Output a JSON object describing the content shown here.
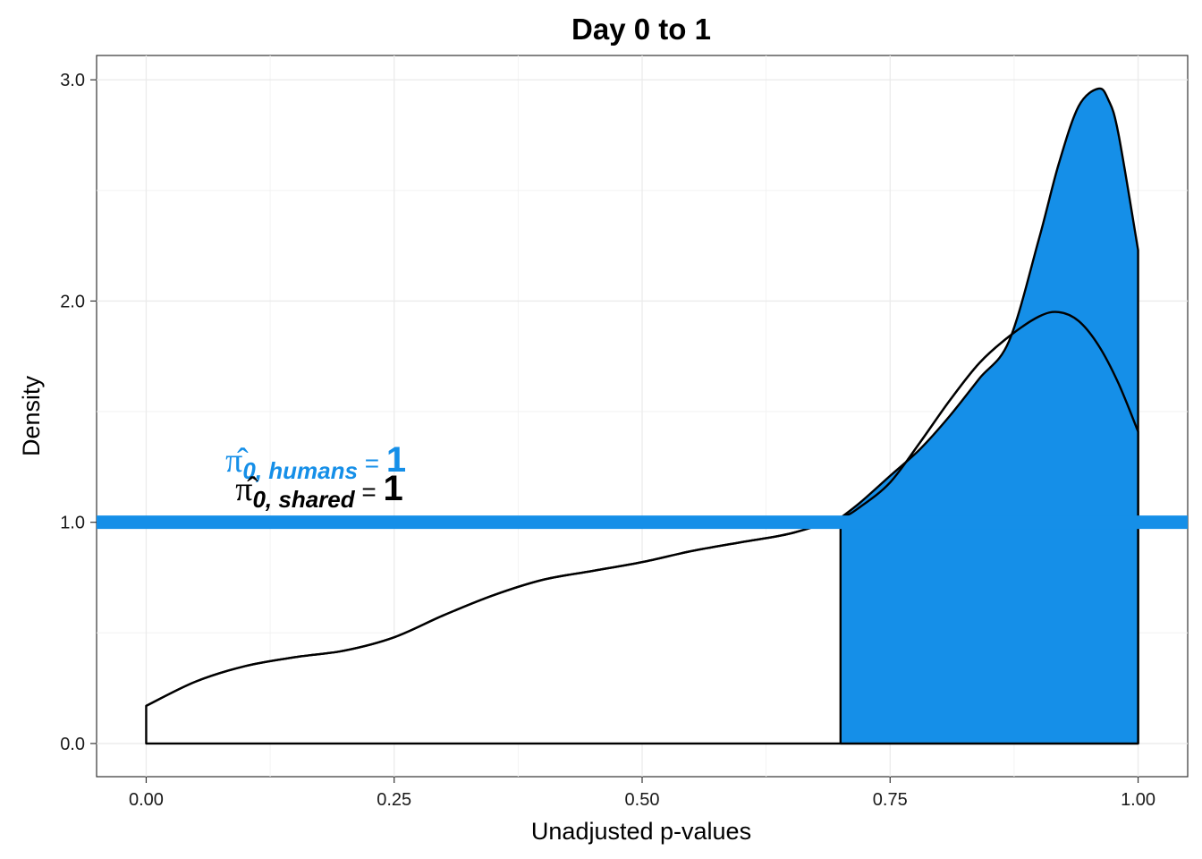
{
  "chart_data": {
    "type": "area",
    "title": "Day 0 to 1",
    "xlabel": "Unadjusted p-values",
    "ylabel": "Density",
    "xlim": [
      -0.05,
      1.05
    ],
    "ylim": [
      -0.15,
      3.11
    ],
    "grid": true,
    "x_ticks": [
      {
        "value": 0.0,
        "label": "0.00"
      },
      {
        "value": 0.25,
        "label": "0.25"
      },
      {
        "value": 0.5,
        "label": "0.50"
      },
      {
        "value": 0.75,
        "label": "0.75"
      },
      {
        "value": 1.0,
        "label": "1.00"
      }
    ],
    "y_ticks": [
      {
        "value": 0,
        "label": "0.0"
      },
      {
        "value": 1,
        "label": "1.0"
      },
      {
        "value": 2,
        "label": "2.0"
      },
      {
        "value": 3,
        "label": "3.0"
      }
    ],
    "series": [
      {
        "fill": "#ffffff",
        "x": [
          0.0,
          0.05,
          0.1,
          0.15,
          0.2,
          0.25,
          0.3,
          0.35,
          0.4,
          0.45,
          0.5,
          0.55,
          0.6,
          0.65,
          0.7,
          0.72,
          0.75,
          0.78,
          0.81,
          0.84,
          0.87,
          0.9,
          0.92,
          0.94,
          0.96,
          0.98,
          1.0
        ],
        "values": [
          0.17,
          0.28,
          0.35,
          0.39,
          0.42,
          0.48,
          0.58,
          0.67,
          0.74,
          0.78,
          0.82,
          0.87,
          0.91,
          0.95,
          1.02,
          1.07,
          1.18,
          1.36,
          1.55,
          1.72,
          1.84,
          1.93,
          1.95,
          1.91,
          1.8,
          1.63,
          1.41
        ]
      },
      {
        "fill": "#158fe8",
        "x": [
          0.7,
          0.72,
          0.75,
          0.78,
          0.81,
          0.84,
          0.87,
          0.9,
          0.92,
          0.94,
          0.96,
          0.97,
          0.98,
          1.0
        ],
        "values": [
          1.02,
          1.09,
          1.21,
          1.33,
          1.48,
          1.65,
          1.82,
          2.28,
          2.62,
          2.88,
          2.96,
          2.91,
          2.76,
          2.23
        ]
      }
    ],
    "hline": {
      "y": 1.0,
      "color": "#158fe8"
    },
    "annotations": [
      {
        "sym": "π̂",
        "sub": "0, humans",
        "eq": " = ",
        "val": "1",
        "x": 0.08,
        "y": 1.23,
        "color": "#158fe8"
      },
      {
        "sym": "π̂",
        "sub": "0, shared",
        "eq": " = ",
        "val": "1",
        "x": 0.09,
        "y": 1.1,
        "color": "#000000"
      }
    ]
  }
}
